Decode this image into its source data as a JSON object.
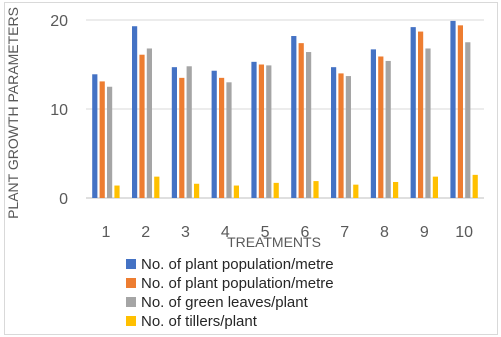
{
  "chart_data": {
    "type": "bar",
    "xlabel": "TREATMENTS",
    "ylabel": "PLANT GROWTH PARAMETERS",
    "ylim": [
      0,
      20
    ],
    "yticks": [
      0,
      10,
      20
    ],
    "grid": true,
    "legend_position": "bottom",
    "categories": [
      "1",
      "2",
      "3",
      "4",
      "5",
      "6",
      "7",
      "8",
      "9",
      "10"
    ],
    "series": [
      {
        "name": "No. of plant population/metre",
        "color": "#4472C4",
        "values": [
          13.9,
          19.3,
          14.7,
          14.3,
          15.3,
          18.2,
          14.7,
          16.7,
          19.2,
          19.9
        ]
      },
      {
        "name": "No. of plant population/metre",
        "color": "#ED7D31",
        "values": [
          13.1,
          16.1,
          13.5,
          13.5,
          15.0,
          17.4,
          14.0,
          15.9,
          18.7,
          19.4
        ]
      },
      {
        "name": "No. of green leaves/plant",
        "color": "#A5A5A5",
        "values": [
          12.5,
          16.8,
          14.8,
          13.0,
          14.9,
          16.4,
          13.7,
          15.4,
          16.8,
          17.5
        ]
      },
      {
        "name": "No. of tillers/plant",
        "color": "#FFC000",
        "values": [
          1.4,
          2.4,
          1.6,
          1.4,
          1.7,
          1.9,
          1.5,
          1.8,
          2.4,
          2.6
        ]
      }
    ]
  }
}
